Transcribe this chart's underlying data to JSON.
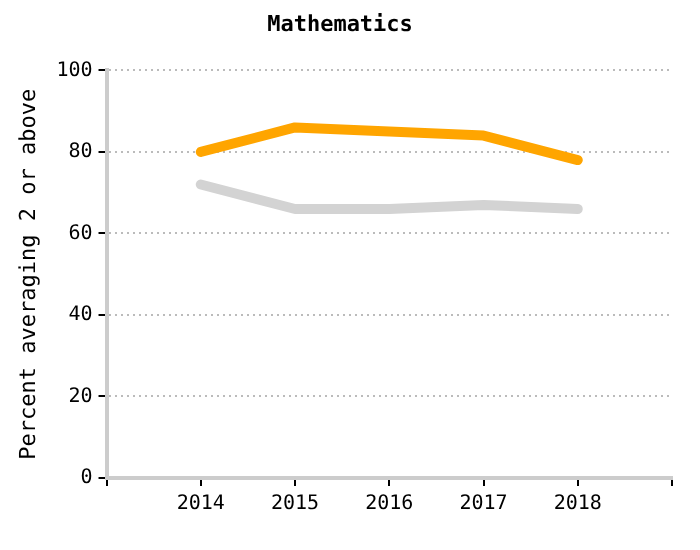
{
  "chart_data": {
    "type": "line",
    "title": "Mathematics",
    "ylabel": "Percent averaging 2 or above",
    "x": [
      2014,
      2015,
      2016,
      2017,
      2018
    ],
    "series": [
      {
        "color": "#ffa500",
        "values": [
          80,
          86,
          85,
          84,
          78
        ]
      },
      {
        "color": "#d3d3d3",
        "values": [
          72,
          66,
          66,
          67,
          66
        ]
      }
    ],
    "xlim": [
      2013,
      2019
    ],
    "xticks": [
      {
        "value": 2013,
        "label": null
      },
      2014,
      2015,
      2016,
      2017,
      2018,
      {
        "value": 2019,
        "label": null
      }
    ],
    "ylim": [
      0,
      100
    ],
    "yticks": [
      0,
      20,
      40,
      60,
      80,
      100
    ],
    "grid": "y",
    "legend": false,
    "marker": "none",
    "line_style": "solid"
  }
}
